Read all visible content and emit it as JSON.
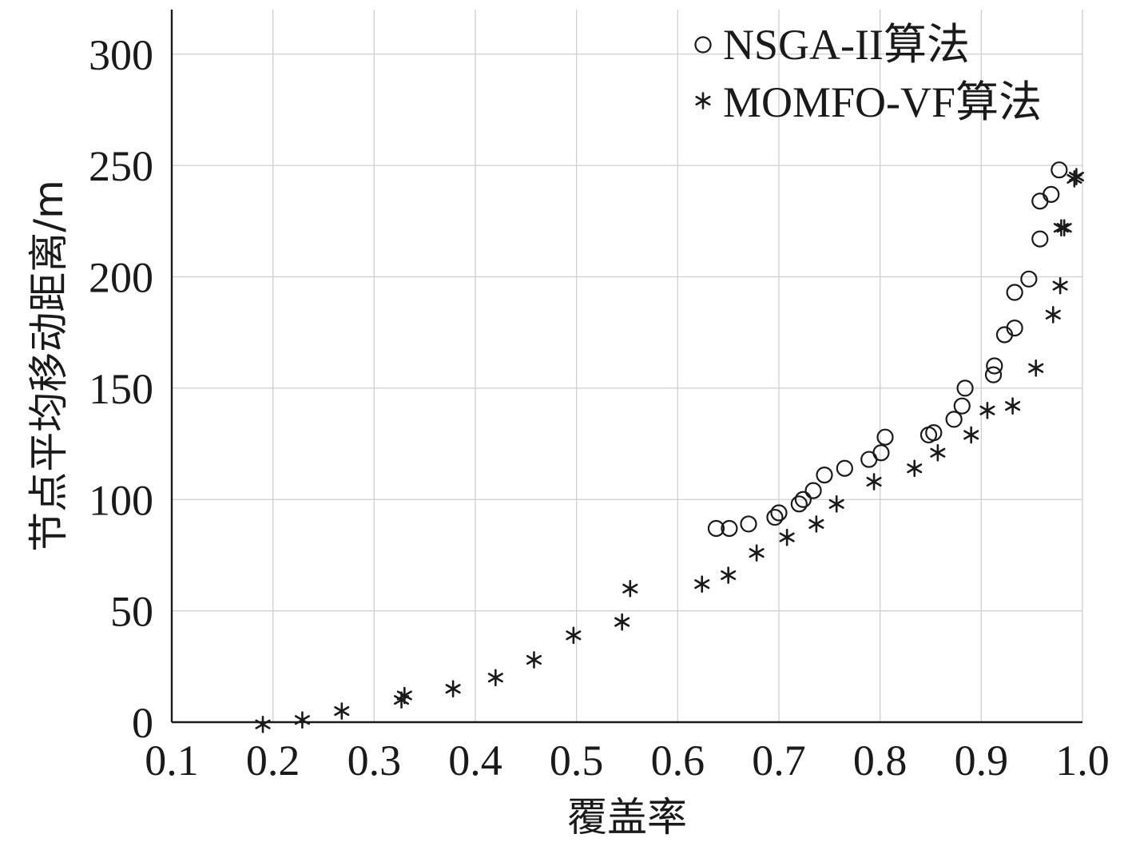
{
  "chart_data": {
    "type": "scatter",
    "xlabel": "覆盖率",
    "ylabel": "节点平均移动距离/m",
    "xlim": [
      0.1,
      1.0
    ],
    "ylim": [
      0,
      320
    ],
    "x_ticks": [
      0.1,
      0.2,
      0.3,
      0.4,
      0.5,
      0.6,
      0.7,
      0.8,
      0.9,
      1.0
    ],
    "x_tick_labels": [
      "0.1",
      "0.2",
      "0.3",
      "0.4",
      "0.5",
      "0.6",
      "0.7",
      "0.8",
      "0.9",
      "1.0"
    ],
    "y_ticks": [
      0,
      50,
      100,
      150,
      200,
      250,
      300
    ],
    "y_tick_labels": [
      "0",
      "50",
      "100",
      "150",
      "200",
      "250",
      "300"
    ],
    "grid": true,
    "legend_position": "top-right",
    "series": [
      {
        "name": "NSGA-II算法",
        "marker": "circle",
        "color": "#1a1a1a",
        "points": [
          [
            0.638,
            87
          ],
          [
            0.651,
            87
          ],
          [
            0.67,
            89
          ],
          [
            0.696,
            92
          ],
          [
            0.7,
            94
          ],
          [
            0.72,
            98
          ],
          [
            0.724,
            100
          ],
          [
            0.734,
            104
          ],
          [
            0.745,
            111
          ],
          [
            0.765,
            114
          ],
          [
            0.789,
            118
          ],
          [
            0.801,
            121
          ],
          [
            0.805,
            128
          ],
          [
            0.848,
            129
          ],
          [
            0.853,
            130
          ],
          [
            0.873,
            136
          ],
          [
            0.881,
            142
          ],
          [
            0.884,
            150
          ],
          [
            0.912,
            156
          ],
          [
            0.913,
            160
          ],
          [
            0.923,
            174
          ],
          [
            0.933,
            177
          ],
          [
            0.933,
            193
          ],
          [
            0.947,
            199
          ],
          [
            0.958,
            217
          ],
          [
            0.958,
            234
          ],
          [
            0.969,
            237
          ],
          [
            0.977,
            248
          ]
        ]
      },
      {
        "name": "MOMFO-VF算法",
        "marker": "star",
        "color": "#1a1a1a",
        "points": [
          [
            0.19,
            -1
          ],
          [
            0.229,
            1
          ],
          [
            0.268,
            5
          ],
          [
            0.327,
            10
          ],
          [
            0.33,
            12
          ],
          [
            0.378,
            15
          ],
          [
            0.42,
            20
          ],
          [
            0.458,
            28
          ],
          [
            0.497,
            39
          ],
          [
            0.545,
            45
          ],
          [
            0.553,
            60
          ],
          [
            0.624,
            62
          ],
          [
            0.65,
            66
          ],
          [
            0.678,
            76
          ],
          [
            0.708,
            83
          ],
          [
            0.737,
            89
          ],
          [
            0.757,
            98
          ],
          [
            0.794,
            108
          ],
          [
            0.834,
            114
          ],
          [
            0.857,
            121
          ],
          [
            0.89,
            129
          ],
          [
            0.906,
            140
          ],
          [
            0.931,
            142
          ],
          [
            0.954,
            159
          ],
          [
            0.971,
            183
          ],
          [
            0.978,
            196
          ],
          [
            0.979,
            222
          ],
          [
            0.982,
            222
          ],
          [
            0.992,
            244
          ],
          [
            0.994,
            245
          ]
        ]
      }
    ]
  }
}
